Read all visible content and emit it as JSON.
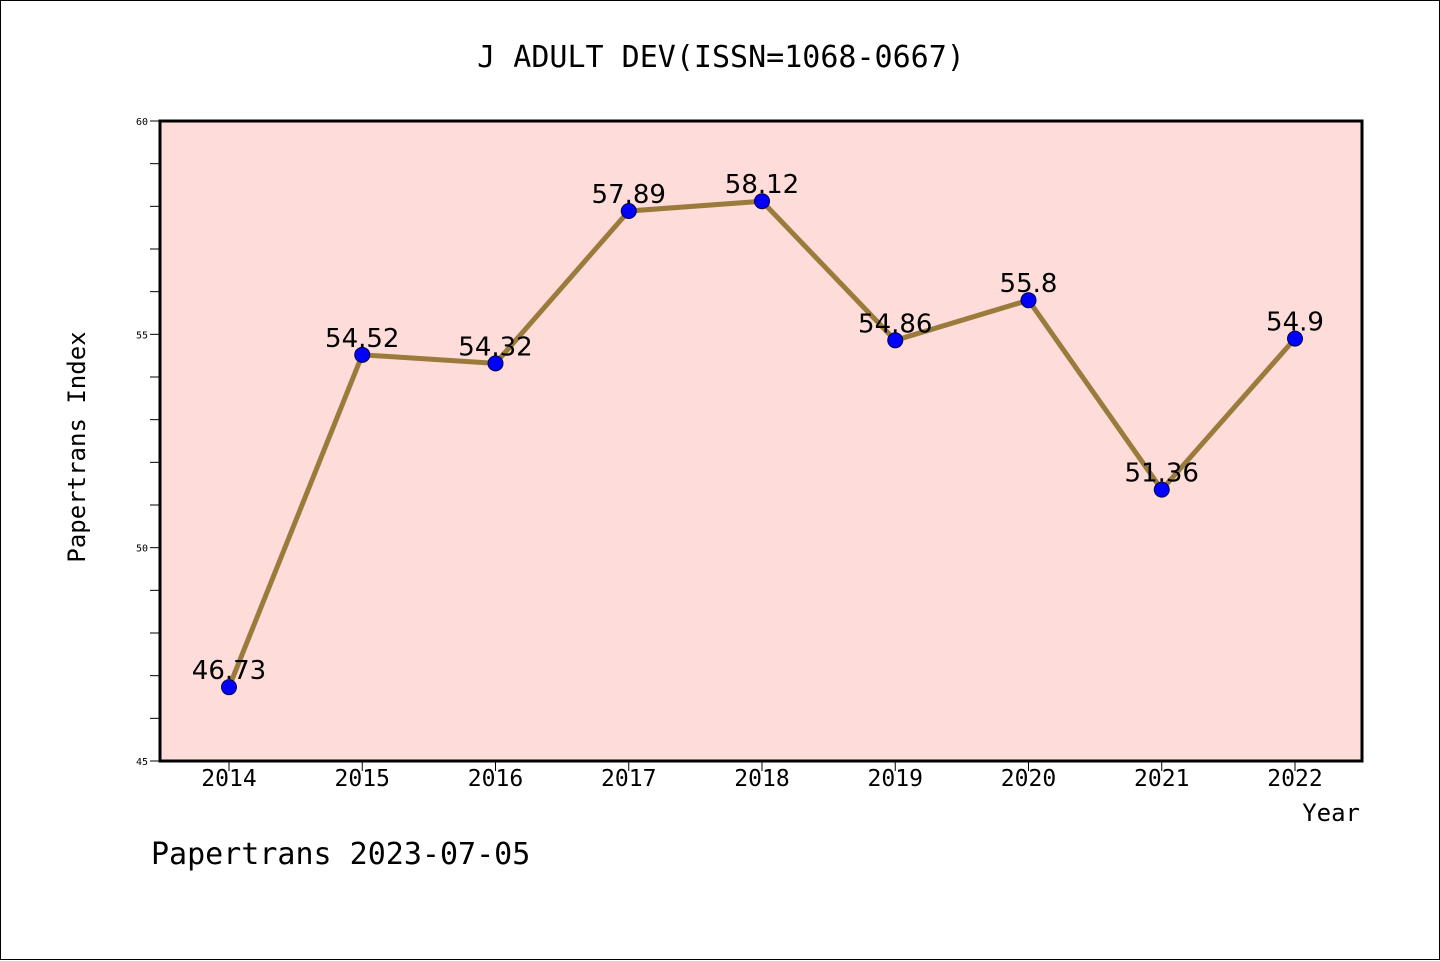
{
  "chart_data": {
    "type": "line",
    "title": "J ADULT DEV(ISSN=1068-0667)",
    "xlabel": "Year",
    "ylabel": "Papertrans Index",
    "categories": [
      "2014",
      "2015",
      "2016",
      "2017",
      "2018",
      "2019",
      "2020",
      "2021",
      "2022"
    ],
    "values": [
      46.73,
      54.52,
      54.32,
      57.89,
      58.12,
      54.86,
      55.8,
      51.36,
      54.9
    ],
    "value_labels": [
      "46.73",
      "54.52",
      "54.32",
      "57.89",
      "58.12",
      "54.86",
      "55.8",
      "51.36",
      "54.9"
    ],
    "ylim": [
      45,
      60
    ],
    "yticks": [
      "45",
      "50",
      "55",
      "60"
    ],
    "grid": false,
    "legend": "none",
    "footer": "Papertrans 2023-07-05",
    "colors": {
      "plot_background": "#fddcd9",
      "line": "#9a7b3c",
      "marker": "#0000ff"
    }
  }
}
